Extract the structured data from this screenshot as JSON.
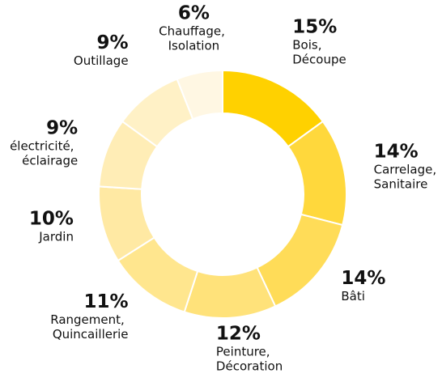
{
  "chart_data": {
    "type": "donut",
    "categories": [
      "Bois, Découpe",
      "Carrelage, Sanitaire",
      "Bâti",
      "Peinture, Décoration",
      "Rangement, Quincaillerie",
      "Jardin",
      "électricité, éclairage",
      "Outillage",
      "Chauffage, Isolation"
    ],
    "values": [
      15,
      14,
      14,
      12,
      11,
      10,
      9,
      9,
      6
    ],
    "value_labels": [
      "15%",
      "14%",
      "14%",
      "12%",
      "11%",
      "10%",
      "9%",
      "9%",
      "6%"
    ],
    "colors": [
      "#ffd100",
      "#ffd83c",
      "#ffdc58",
      "#ffe27a",
      "#ffe68e",
      "#ffe9a3",
      "#ffedb6",
      "#fff1c6",
      "#fff7e3"
    ]
  }
}
